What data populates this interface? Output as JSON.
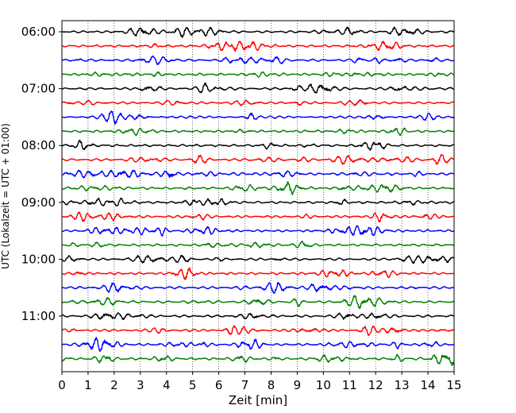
{
  "chart_data": {
    "type": "line",
    "title": "",
    "xlabel": "Zeit  [min]",
    "ylabel": "UTC (Lokalzeit = UTC + 01:00)",
    "xlim": [
      0,
      15
    ],
    "x_ticks": [
      "0",
      "1",
      "2",
      "3",
      "4",
      "5",
      "6",
      "7",
      "8",
      "9",
      "10",
      "11",
      "12",
      "13",
      "14",
      "15"
    ],
    "y_ticks": [
      {
        "label": "06:00",
        "trace": 0
      },
      {
        "label": "07:00",
        "trace": 4
      },
      {
        "label": "08:00",
        "trace": 8
      },
      {
        "label": "09:00",
        "trace": 12
      },
      {
        "label": "10:00",
        "trace": 16
      },
      {
        "label": "11:00",
        "trace": 20
      }
    ],
    "trace_count": 24,
    "trace_interval_minutes": 15,
    "trace_colors": [
      "#000000",
      "#ff0000",
      "#0000ff",
      "#008000"
    ],
    "grid": "vertical-dotted"
  }
}
